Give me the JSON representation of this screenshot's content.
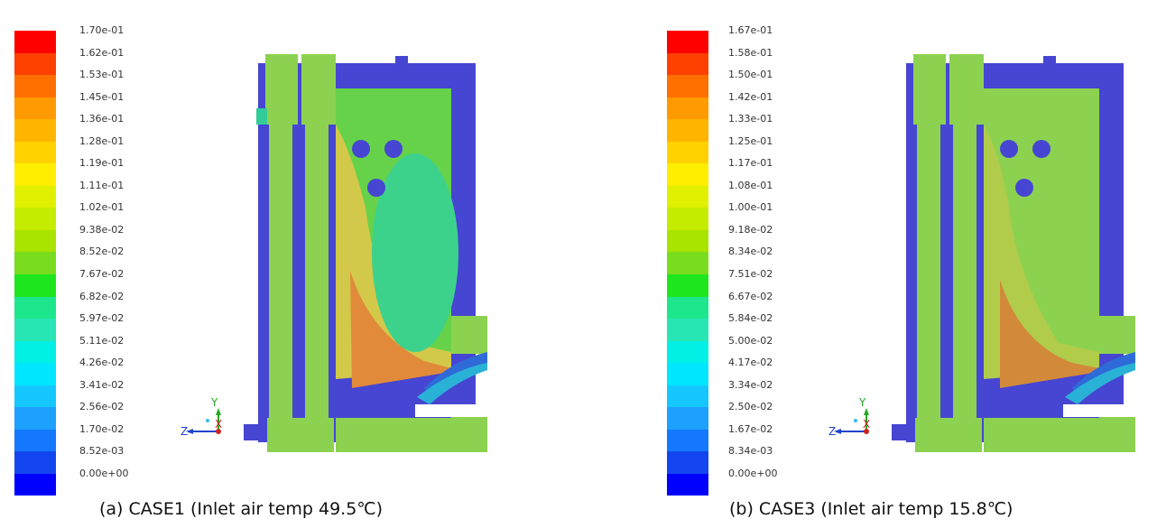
{
  "panels": [
    {
      "caption": "(a) CASE1 (Inlet air temp 49.5℃)",
      "colorbar_labels": [
        "1.70e-01",
        "1.62e-01",
        "1.53e-01",
        "1.45e-01",
        "1.36e-01",
        "1.28e-01",
        "1.19e-01",
        "1.11e-01",
        "1.02e-01",
        "9.38e-02",
        "8.52e-02",
        "7.67e-02",
        "6.82e-02",
        "5.97e-02",
        "5.11e-02",
        "4.26e-02",
        "3.41e-02",
        "2.56e-02",
        "1.70e-02",
        "8.52e-03",
        "0.00e+00"
      ]
    },
    {
      "caption": "(b) CASE3 (Inlet air temp 15.8℃)",
      "colorbar_labels": [
        "1.67e-01",
        "1.58e-01",
        "1.50e-01",
        "1.42e-01",
        "1.33e-01",
        "1.25e-01",
        "1.17e-01",
        "1.08e-01",
        "1.00e-01",
        "9.18e-02",
        "8.34e-02",
        "7.51e-02",
        "6.67e-02",
        "5.84e-02",
        "5.00e-02",
        "4.17e-02",
        "3.34e-02",
        "2.50e-02",
        "1.67e-02",
        "8.34e-03",
        "0.00e+00"
      ]
    }
  ],
  "colorbar_colors": [
    "#ff0000",
    "#ff4000",
    "#ff7000",
    "#ff9a00",
    "#ffb400",
    "#ffd200",
    "#ffee00",
    "#e0f000",
    "#c4ec00",
    "#a8e400",
    "#7adc1e",
    "#1ee61e",
    "#1ee68c",
    "#28e6b4",
    "#00f0e6",
    "#00e6ff",
    "#14c8ff",
    "#1ea0ff",
    "#1478ff",
    "#1446f0",
    "#0000ff"
  ],
  "axis_triad": {
    "y": "Y",
    "z": "Z",
    "x": "X"
  }
}
